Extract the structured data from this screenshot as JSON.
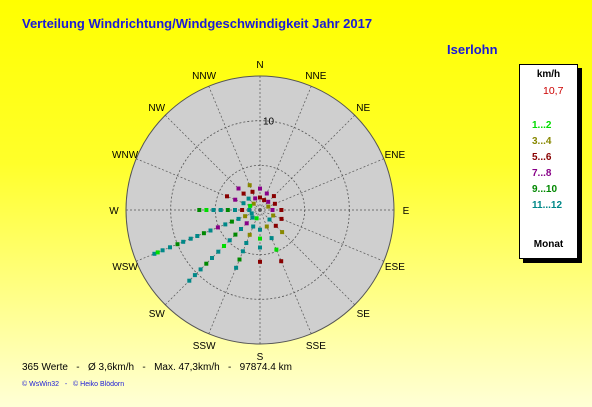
{
  "title": "Verteilung Windrichtung/Windgeschwindigkeit  Jahr 2017",
  "station": "Iserlohn",
  "legend": {
    "unit": "km/h",
    "max_value": "10,7",
    "mode": "Monat",
    "items": [
      {
        "label": "1...2",
        "color": "#00dd00"
      },
      {
        "label": "3...4",
        "color": "#888800"
      },
      {
        "label": "5...6",
        "color": "#880000"
      },
      {
        "label": "7...8",
        "color": "#880088"
      },
      {
        "label": "9...10",
        "color": "#008800"
      },
      {
        "label": "11...12",
        "color": "#008888"
      }
    ]
  },
  "stats": "365 Werte   -   Ø 3,6km/h   -   Max. 47,3km/h   -   97874.4 km",
  "credits": "© WsWin32   -   © Heiko Blödorn",
  "chart_data": {
    "type": "scatter",
    "subtype": "polar-wind-rose",
    "radial_max": 15,
    "ring_label": "10",
    "directions": [
      "N",
      "NNE",
      "NE",
      "ENE",
      "E",
      "ESE",
      "SE",
      "SSE",
      "S",
      "SSW",
      "SW",
      "WSW",
      "W",
      "WNW",
      "NW",
      "NNW"
    ],
    "month_colors": [
      "#00dd00",
      "#888800",
      "#880000",
      "#880088",
      "#008800",
      "#008888"
    ],
    "series": [
      {
        "direction": "WSW",
        "month_group": 6,
        "r": 12.8
      },
      {
        "direction": "WSW",
        "month_group": 1,
        "r": 12.4
      },
      {
        "direction": "WSW",
        "month_group": 6,
        "r": 11.8
      },
      {
        "direction": "WSW",
        "month_group": 6,
        "r": 10.9
      },
      {
        "direction": "WSW",
        "month_group": 5,
        "r": 10.0
      },
      {
        "direction": "WSW",
        "month_group": 6,
        "r": 9.3
      },
      {
        "direction": "WSW",
        "month_group": 6,
        "r": 8.4
      },
      {
        "direction": "WSW",
        "month_group": 6,
        "r": 7.6
      },
      {
        "direction": "WSW",
        "month_group": 5,
        "r": 6.8
      },
      {
        "direction": "WSW",
        "month_group": 6,
        "r": 6.0
      },
      {
        "direction": "WSW",
        "month_group": 4,
        "r": 5.1
      },
      {
        "direction": "WSW",
        "month_group": 6,
        "r": 4.2
      },
      {
        "direction": "WSW",
        "month_group": 5,
        "r": 3.4
      },
      {
        "direction": "WSW",
        "month_group": 6,
        "r": 2.6
      },
      {
        "direction": "WSW",
        "month_group": 2,
        "r": 1.8
      },
      {
        "direction": "WSW",
        "month_group": 6,
        "r": 1.0
      },
      {
        "direction": "SW",
        "month_group": 6,
        "r": 11.2
      },
      {
        "direction": "SW",
        "month_group": 6,
        "r": 10.3
      },
      {
        "direction": "SW",
        "month_group": 6,
        "r": 9.4
      },
      {
        "direction": "SW",
        "month_group": 5,
        "r": 8.5
      },
      {
        "direction": "SW",
        "month_group": 6,
        "r": 7.6
      },
      {
        "direction": "SW",
        "month_group": 6,
        "r": 6.6
      },
      {
        "direction": "SW",
        "month_group": 1,
        "r": 5.7
      },
      {
        "direction": "SW",
        "month_group": 6,
        "r": 4.8
      },
      {
        "direction": "SW",
        "month_group": 5,
        "r": 3.9
      },
      {
        "direction": "SW",
        "month_group": 6,
        "r": 3.0
      },
      {
        "direction": "SW",
        "month_group": 4,
        "r": 2.1
      },
      {
        "direction": "SW",
        "month_group": 6,
        "r": 1.2
      },
      {
        "direction": "SSW",
        "month_group": 6,
        "r": 7.0
      },
      {
        "direction": "SSW",
        "month_group": 5,
        "r": 6.0
      },
      {
        "direction": "SSW",
        "month_group": 6,
        "r": 5.0
      },
      {
        "direction": "SSW",
        "month_group": 6,
        "r": 4.0
      },
      {
        "direction": "SSW",
        "month_group": 2,
        "r": 3.0
      },
      {
        "direction": "SSW",
        "month_group": 6,
        "r": 2.0
      },
      {
        "direction": "SSW",
        "month_group": 1,
        "r": 1.0
      },
      {
        "direction": "W",
        "month_group": 5,
        "r": 6.8
      },
      {
        "direction": "W",
        "month_group": 1,
        "r": 6.0
      },
      {
        "direction": "W",
        "month_group": 6,
        "r": 5.2
      },
      {
        "direction": "W",
        "month_group": 6,
        "r": 4.4
      },
      {
        "direction": "W",
        "month_group": 5,
        "r": 3.6
      },
      {
        "direction": "W",
        "month_group": 6,
        "r": 2.8
      },
      {
        "direction": "W",
        "month_group": 3,
        "r": 2.0
      },
      {
        "direction": "W",
        "month_group": 6,
        "r": 1.2
      },
      {
        "direction": "S",
        "month_group": 3,
        "r": 5.8
      },
      {
        "direction": "S",
        "month_group": 6,
        "r": 4.2
      },
      {
        "direction": "S",
        "month_group": 1,
        "r": 3.2
      },
      {
        "direction": "S",
        "month_group": 6,
        "r": 2.2
      },
      {
        "direction": "SSE",
        "month_group": 3,
        "r": 6.2
      },
      {
        "direction": "SSE",
        "month_group": 1,
        "r": 4.8
      },
      {
        "direction": "SSE",
        "month_group": 6,
        "r": 3.4
      },
      {
        "direction": "SSE",
        "month_group": 2,
        "r": 2.0
      },
      {
        "direction": "SE",
        "month_group": 2,
        "r": 3.5
      },
      {
        "direction": "SE",
        "month_group": 3,
        "r": 2.5
      },
      {
        "direction": "SE",
        "month_group": 6,
        "r": 1.5
      },
      {
        "direction": "ESE",
        "month_group": 3,
        "r": 2.6
      },
      {
        "direction": "ESE",
        "month_group": 2,
        "r": 1.6
      },
      {
        "direction": "E",
        "month_group": 3,
        "r": 2.4
      },
      {
        "direction": "E",
        "month_group": 4,
        "r": 1.4
      },
      {
        "direction": "ENE",
        "month_group": 3,
        "r": 1.8
      },
      {
        "direction": "ENE",
        "month_group": 2,
        "r": 1.0
      },
      {
        "direction": "NE",
        "month_group": 3,
        "r": 2.2
      },
      {
        "direction": "NE",
        "month_group": 4,
        "r": 1.3
      },
      {
        "direction": "NNE",
        "month_group": 4,
        "r": 2.0
      },
      {
        "direction": "NNE",
        "month_group": 3,
        "r": 1.2
      },
      {
        "direction": "N",
        "month_group": 4,
        "r": 2.4
      },
      {
        "direction": "N",
        "month_group": 3,
        "r": 1.4
      },
      {
        "direction": "NNW",
        "month_group": 2,
        "r": 3.0
      },
      {
        "direction": "NNW",
        "month_group": 3,
        "r": 2.2
      },
      {
        "direction": "NNW",
        "month_group": 4,
        "r": 1.4
      },
      {
        "direction": "NW",
        "month_group": 4,
        "r": 3.4
      },
      {
        "direction": "NW",
        "month_group": 3,
        "r": 2.6
      },
      {
        "direction": "NW",
        "month_group": 6,
        "r": 1.8
      },
      {
        "direction": "NW",
        "month_group": 2,
        "r": 1.0
      },
      {
        "direction": "WNW",
        "month_group": 3,
        "r": 4.0
      },
      {
        "direction": "WNW",
        "month_group": 4,
        "r": 3.0
      },
      {
        "direction": "WNW",
        "month_group": 6,
        "r": 2.0
      },
      {
        "direction": "WNW",
        "month_group": 1,
        "r": 1.2
      }
    ]
  }
}
